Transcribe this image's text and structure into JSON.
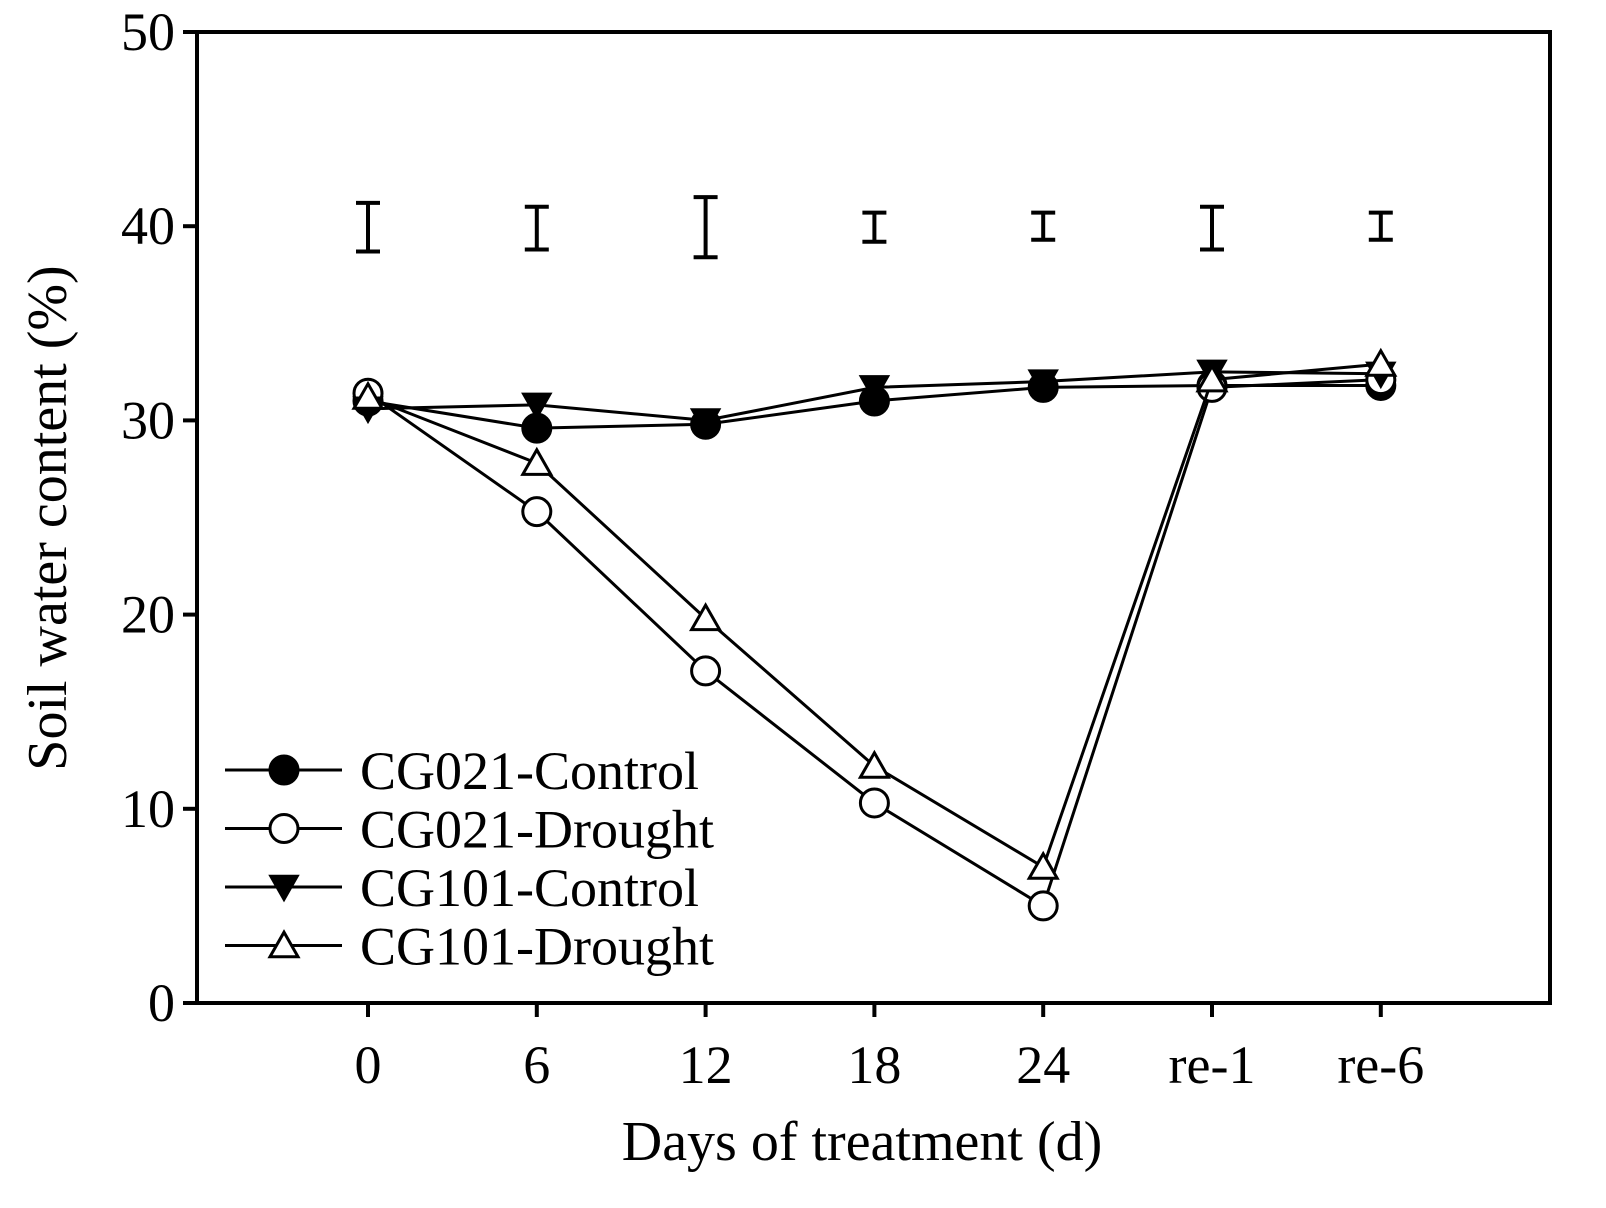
{
  "chart_data": {
    "type": "line",
    "title": "",
    "xlabel": "Days of treatment (d)",
    "ylabel": "Soil water content (%)",
    "categories": [
      "0",
      "6",
      "12",
      "18",
      "24",
      "re-1",
      "re-6"
    ],
    "ylim": [
      0,
      50
    ],
    "yticks": [
      0,
      10,
      20,
      30,
      40,
      50
    ],
    "grid": false,
    "legend_position": "bottom-left",
    "series": [
      {
        "name": "CG021-Control",
        "marker": "filled-circle",
        "values": [
          31.0,
          29.6,
          29.8,
          31.0,
          31.7,
          31.8,
          31.8
        ]
      },
      {
        "name": "CG021-Drought",
        "marker": "open-circle",
        "values": [
          31.4,
          25.3,
          17.1,
          10.3,
          5.0,
          31.7,
          32.1
        ]
      },
      {
        "name": "CG101-Control",
        "marker": "filled-triangle-down",
        "values": [
          30.6,
          30.8,
          30.0,
          31.7,
          32.0,
          32.5,
          32.4
        ]
      },
      {
        "name": "CG101-Drought",
        "marker": "open-triangle-up",
        "values": [
          31.2,
          27.8,
          19.8,
          12.2,
          7.0,
          32.1,
          32.9
        ]
      }
    ],
    "error_bars": [
      {
        "category": "0",
        "low": 38.7,
        "high": 41.2
      },
      {
        "category": "6",
        "low": 38.8,
        "high": 41.0
      },
      {
        "category": "12",
        "low": 38.4,
        "high": 41.5
      },
      {
        "category": "18",
        "low": 39.2,
        "high": 40.7
      },
      {
        "category": "24",
        "low": 39.3,
        "high": 40.7
      },
      {
        "category": "re-1",
        "low": 38.8,
        "high": 41.0
      },
      {
        "category": "re-6",
        "low": 39.3,
        "high": 40.7
      }
    ],
    "colors": {
      "line": "#000000",
      "fill": "#000000",
      "open": "#ffffff"
    }
  }
}
